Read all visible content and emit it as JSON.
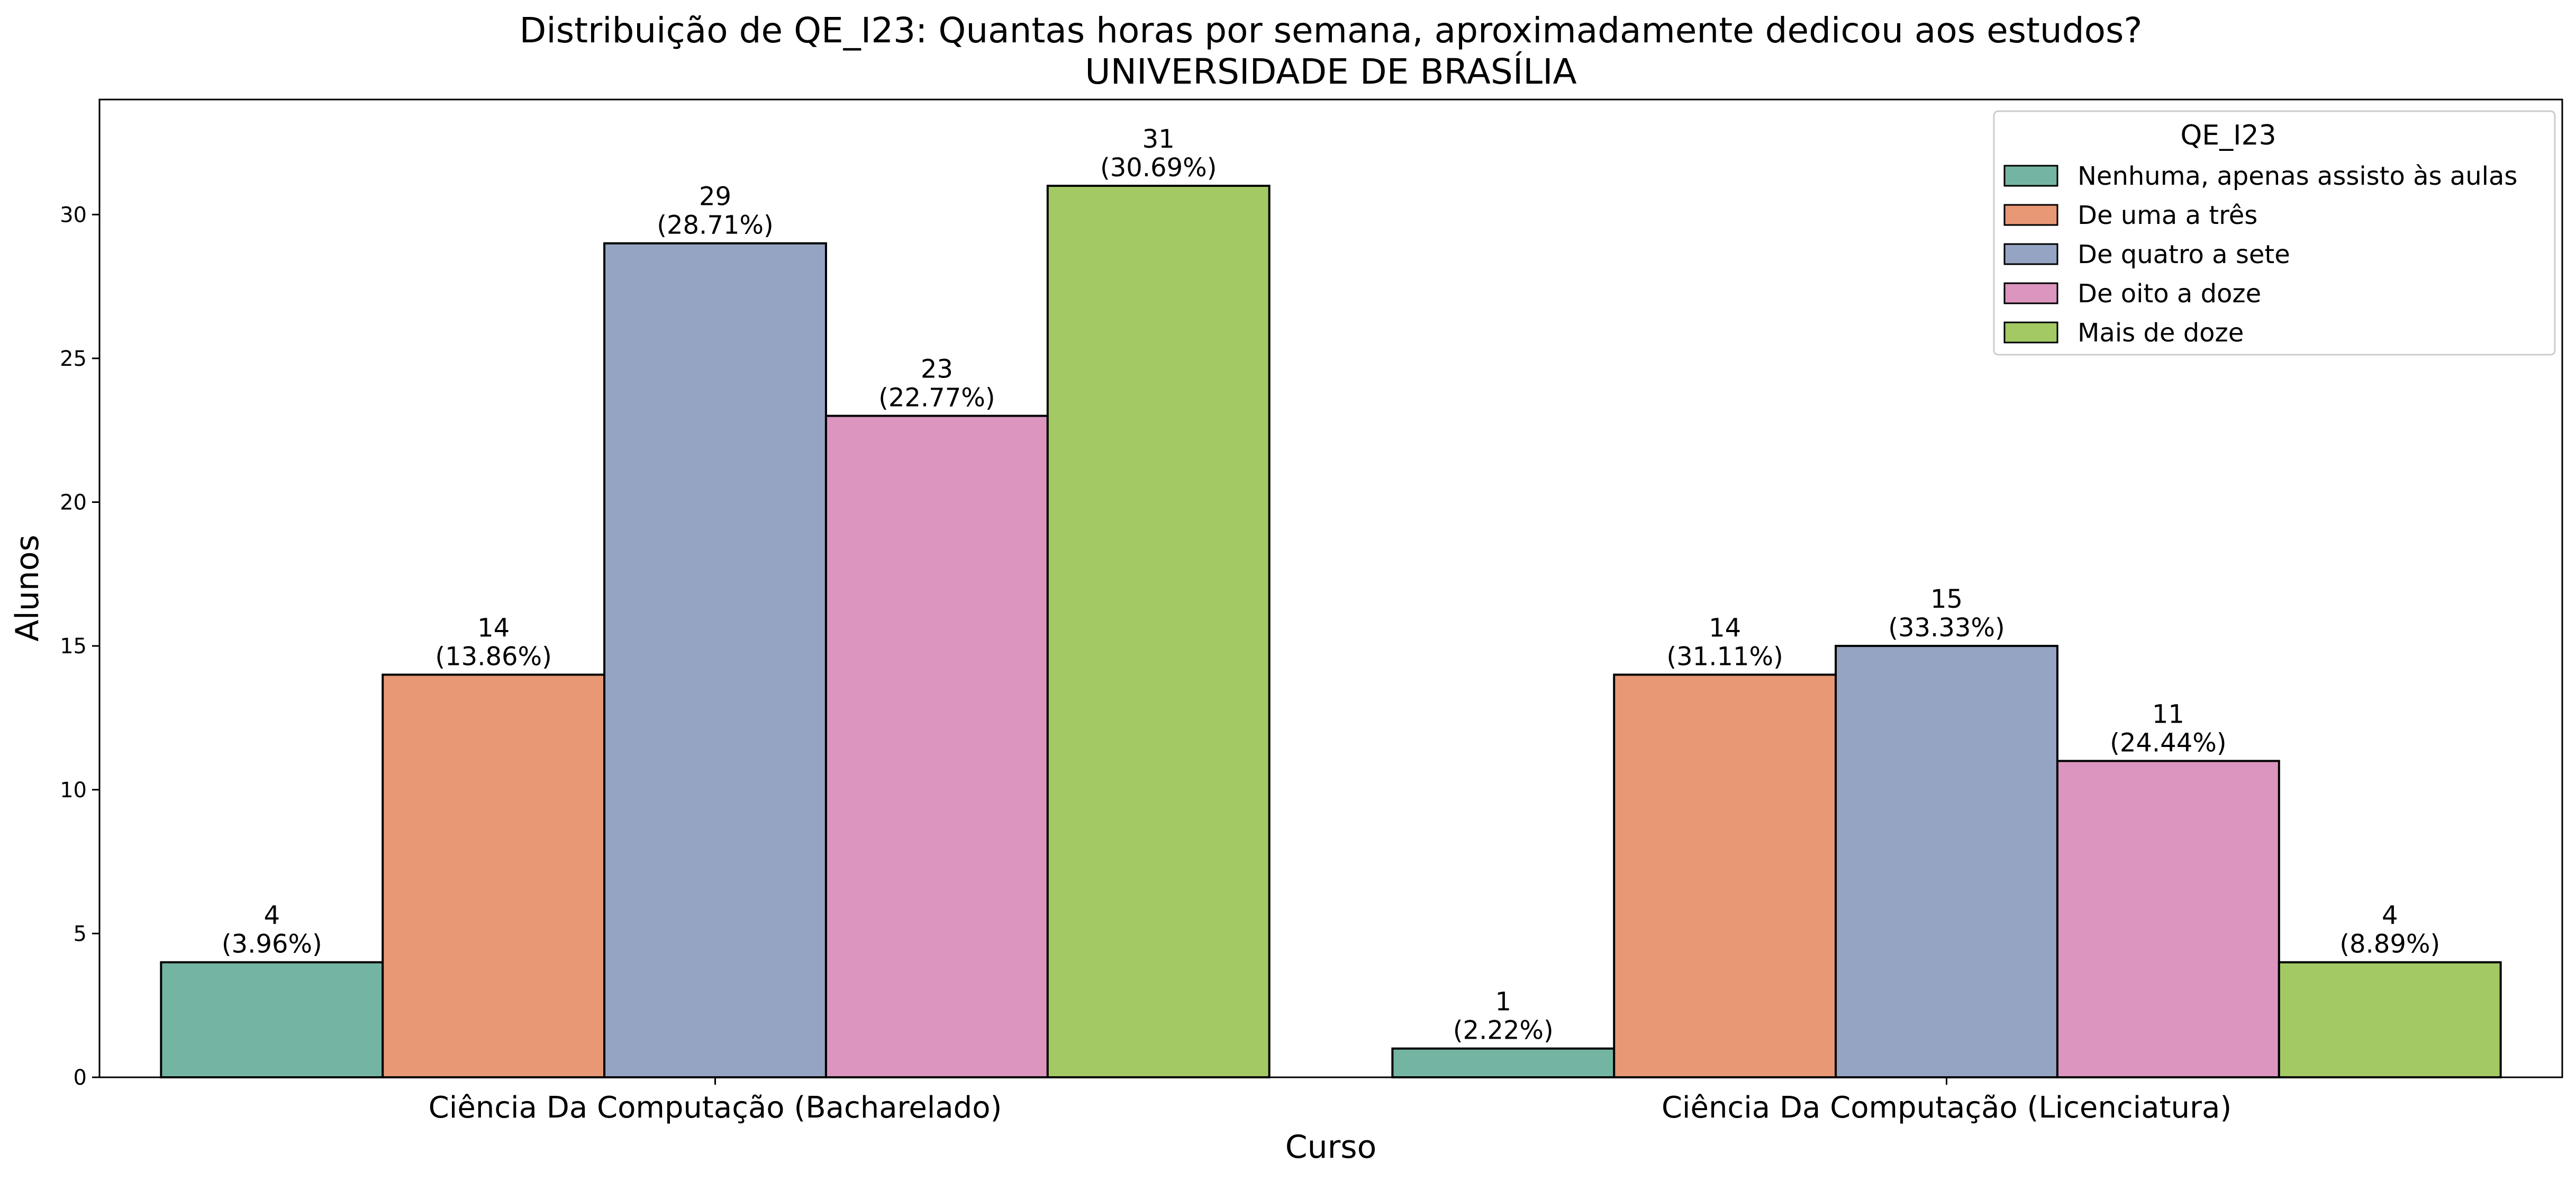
{
  "chart_data": {
    "type": "bar",
    "title": "Distribuição de QE_I23: Quantas horas por semana, aproximadamente dedicou aos estudos?",
    "subtitle": "UNIVERSIDADE DE BRASÍLIA",
    "xlabel": "Curso",
    "ylabel": "Alunos",
    "categories": [
      "Ciência Da Computação (Bacharelado)",
      "Ciência Da Computação (Licenciatura)"
    ],
    "ylim": [
      0,
      34
    ],
    "yticks": [
      0,
      5,
      10,
      15,
      20,
      25,
      30
    ],
    "grid": false,
    "legend": {
      "title": "QE_I23",
      "position": "top-right"
    },
    "series": [
      {
        "name": "Nenhuma, apenas assisto às aulas",
        "color": "#73b5a2",
        "values": [
          4,
          1
        ],
        "labels": [
          "(3.96%)",
          "(2.22%)"
        ]
      },
      {
        "name": "De uma a três",
        "color": "#e89875",
        "values": [
          14,
          14
        ],
        "labels": [
          "(13.86%)",
          "(31.11%)"
        ]
      },
      {
        "name": "De quatro a sete",
        "color": "#95a4c3",
        "values": [
          29,
          15
        ],
        "labels": [
          "(28.71%)",
          "(33.33%)"
        ]
      },
      {
        "name": "De oito a doze",
        "color": "#db95bf",
        "values": [
          23,
          11
        ],
        "labels": [
          "(22.77%)",
          "(24.44%)"
        ]
      },
      {
        "name": "Mais de doze",
        "color": "#a3c964",
        "values": [
          31,
          4
        ],
        "labels": [
          "(30.69%)",
          "(8.89%)"
        ]
      }
    ]
  }
}
